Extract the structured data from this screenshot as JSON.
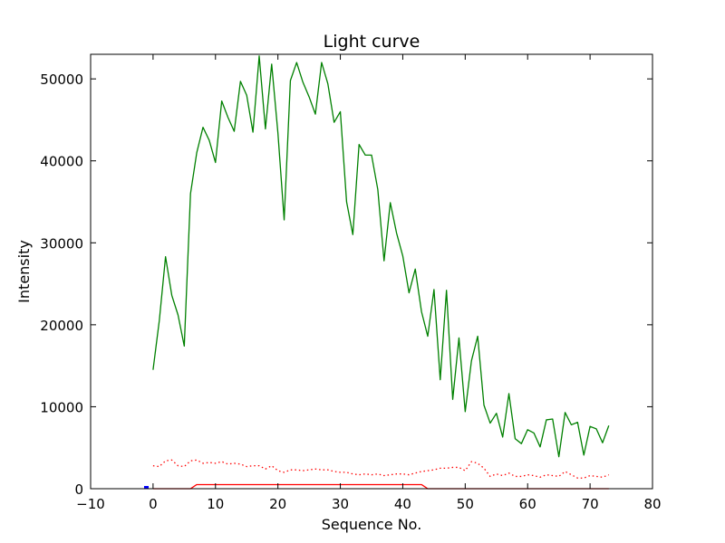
{
  "chart_data": {
    "type": "line",
    "title": "Light curve",
    "xlabel": "Sequence No.",
    "ylabel": "Intensity",
    "xlim": [
      -10,
      80
    ],
    "ylim": [
      0,
      53000
    ],
    "xticks": [
      -10,
      0,
      10,
      20,
      30,
      40,
      50,
      60,
      70,
      80
    ],
    "yticks": [
      0,
      10000,
      20000,
      30000,
      40000,
      50000
    ],
    "legend": "none",
    "grid": false,
    "series": [
      {
        "color": "#008000",
        "style": "solid",
        "x": [
          0,
          1,
          2,
          3,
          4,
          5,
          6,
          7,
          8,
          9,
          10,
          11,
          12,
          13,
          14,
          15,
          16,
          17,
          18,
          19,
          20,
          21,
          22,
          23,
          24,
          25,
          26,
          27,
          28,
          29,
          30,
          31,
          32,
          33,
          34,
          35,
          36,
          37,
          38,
          39,
          40,
          41,
          42,
          43,
          44,
          45,
          46,
          47,
          48,
          49,
          50,
          51,
          52,
          53,
          54,
          55,
          56,
          57,
          58,
          59,
          60,
          61,
          62,
          63,
          64,
          65,
          66,
          67,
          68,
          69,
          70,
          71,
          72,
          73
        ],
        "y": [
          14500,
          20500,
          28300,
          23600,
          21200,
          17400,
          36000,
          41000,
          44100,
          42500,
          39800,
          47300,
          45300,
          43600,
          49700,
          48000,
          43500,
          52800,
          43900,
          51800,
          43400,
          32800,
          49800,
          52000,
          49600,
          47800,
          45700,
          52000,
          49400,
          44700,
          46000,
          35000,
          31000,
          42000,
          40700,
          40700,
          36500,
          27800,
          34900,
          31200,
          28400,
          23900,
          26800,
          21600,
          18600,
          24300,
          13300,
          24200,
          10900,
          18400,
          9400,
          15600,
          18600,
          10200,
          8000,
          9200,
          6300,
          11600,
          6100,
          5500,
          7200,
          6800,
          5100,
          8400,
          8500,
          3900,
          9300,
          7800,
          8100,
          4100,
          7600,
          7300,
          5600,
          7700
        ]
      },
      {
        "color": "#ff0000",
        "style": "dotted",
        "x": [
          0,
          1,
          2,
          3,
          4,
          5,
          6,
          7,
          8,
          9,
          10,
          11,
          12,
          13,
          14,
          15,
          16,
          17,
          18,
          19,
          20,
          21,
          22,
          23,
          24,
          25,
          26,
          27,
          28,
          29,
          30,
          31,
          32,
          33,
          34,
          35,
          36,
          37,
          38,
          39,
          40,
          41,
          42,
          43,
          44,
          45,
          46,
          47,
          48,
          49,
          50,
          51,
          52,
          53,
          54,
          55,
          56,
          57,
          58,
          59,
          60,
          61,
          62,
          63,
          64,
          65,
          66,
          67,
          68,
          69,
          70,
          71,
          72,
          73
        ],
        "y": [
          2800,
          2700,
          3400,
          3500,
          2800,
          2700,
          3400,
          3500,
          3100,
          3200,
          3100,
          3300,
          3000,
          3100,
          3000,
          2700,
          2800,
          2800,
          2400,
          2800,
          2200,
          2000,
          2300,
          2300,
          2200,
          2300,
          2400,
          2300,
          2300,
          2100,
          2000,
          2000,
          1800,
          1700,
          1800,
          1700,
          1800,
          1600,
          1700,
          1800,
          1800,
          1700,
          1900,
          2100,
          2200,
          2300,
          2500,
          2500,
          2600,
          2600,
          2200,
          3300,
          3100,
          2500,
          1500,
          1800,
          1600,
          1900,
          1500,
          1500,
          1700,
          1600,
          1400,
          1700,
          1600,
          1500,
          2100,
          1700,
          1300,
          1300,
          1600,
          1500,
          1400,
          1700
        ]
      },
      {
        "color": "#ff0000",
        "style": "solid",
        "x": [
          0,
          6,
          7,
          43,
          44,
          73
        ],
        "y": [
          0,
          0,
          500,
          500,
          0,
          0
        ]
      },
      {
        "color": "#0000ff",
        "style": "solid",
        "x": [
          -1,
          -1
        ],
        "y": [
          0,
          0
        ]
      }
    ]
  }
}
